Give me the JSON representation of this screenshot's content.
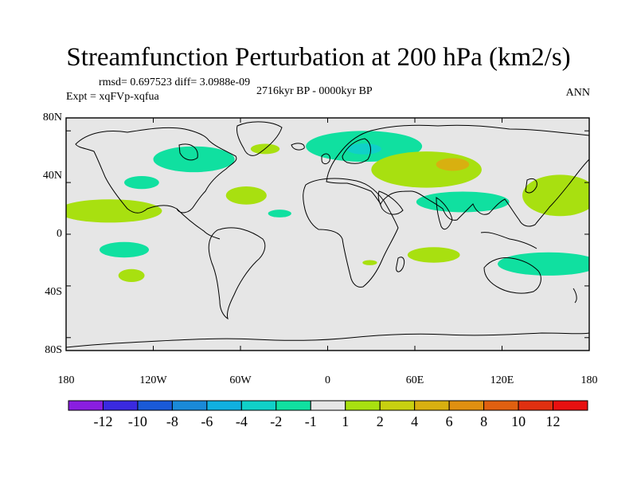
{
  "title": "Streamfunction Perturbation at 200 hPa (km2/s)",
  "stats": "rmsd= 0.697523 diff= 3.0988e-09",
  "period": "2716kyr BP - 0000kyr BP",
  "experiment": "Expt = xqFVp-xqfua",
  "season": "ANN",
  "axes": {
    "lat_ticks": [
      "80N",
      "40N",
      "0",
      "40S",
      "80S"
    ],
    "lon_ticks": [
      "180",
      "120W",
      "60W",
      "0",
      "60E",
      "120E",
      "180"
    ]
  },
  "colorbar": {
    "labels": [
      "-12",
      "-10",
      "-8",
      "-6",
      "-4",
      "-2",
      "-1",
      "1",
      "2",
      "4",
      "6",
      "8",
      "10",
      "12"
    ],
    "colors": [
      "#8a1ee0",
      "#3a2ae0",
      "#1a5ad8",
      "#1a8ad8",
      "#10b0e0",
      "#10d0c8",
      "#10e0a0",
      "#e6e6e6",
      "#a8e010",
      "#c8d010",
      "#d8b010",
      "#e09010",
      "#e06010",
      "#e03010",
      "#e81010"
    ]
  },
  "chart_data": {
    "type": "map",
    "projection": "cylindrical-equidistant",
    "variable": "Streamfunction Perturbation at 200 hPa",
    "units": "km2/s",
    "lon_range": [
      -180,
      180
    ],
    "lat_range": [
      -90,
      90
    ],
    "contour_levels": [
      -12,
      -10,
      -8,
      -6,
      -4,
      -2,
      -1,
      1,
      2,
      4,
      6,
      8,
      10,
      12
    ],
    "anomaly_regions": [
      {
        "name": "pos-mid-pacific-nh",
        "sign": "positive",
        "class": "1 to 2",
        "center": [
          -150,
          18
        ],
        "half_width_deg": [
          36,
          9
        ]
      },
      {
        "name": "neg-canada",
        "sign": "negative",
        "class": "-2 to -1",
        "center": [
          -92,
          58
        ],
        "half_width_deg": [
          28,
          10
        ]
      },
      {
        "name": "neg-north-pacific",
        "sign": "negative",
        "class": "-2 to -1",
        "center": [
          -128,
          40
        ],
        "half_width_deg": [
          12,
          5
        ]
      },
      {
        "name": "pos-greenland",
        "sign": "positive",
        "class": "1 to 2",
        "center": [
          -43,
          66
        ],
        "half_width_deg": [
          10,
          4
        ]
      },
      {
        "name": "pos-west-atlantic",
        "sign": "positive",
        "class": "1 to 2",
        "center": [
          -56,
          30
        ],
        "half_width_deg": [
          14,
          7
        ]
      },
      {
        "name": "neg-subtropical-atlantic",
        "sign": "negative",
        "class": "-2 to -1",
        "center": [
          -33,
          16
        ],
        "half_width_deg": [
          8,
          3
        ]
      },
      {
        "name": "neg-scandinavia",
        "sign": "negative",
        "class": "-4 to -2 core",
        "center": [
          25,
          68
        ],
        "half_width_deg": [
          40,
          12
        ]
      },
      {
        "name": "pos-central-asia",
        "sign": "positive",
        "class": "4 to 6 core",
        "center": [
          68,
          50
        ],
        "half_width_deg": [
          38,
          14
        ]
      },
      {
        "name": "neg-south-asia",
        "sign": "negative",
        "class": "-2 to -1",
        "center": [
          93,
          25
        ],
        "half_width_deg": [
          32,
          8
        ]
      },
      {
        "name": "pos-north-pacific-west",
        "sign": "positive",
        "class": "1 to 2",
        "center": [
          160,
          30
        ],
        "half_width_deg": [
          26,
          16
        ]
      },
      {
        "name": "neg-south-pacific",
        "sign": "negative",
        "class": "-2 to -1",
        "center": [
          -140,
          -12
        ],
        "half_width_deg": [
          17,
          6
        ]
      },
      {
        "name": "pos-south-pacific",
        "sign": "positive",
        "class": "1 to 2",
        "center": [
          -135,
          -32
        ],
        "half_width_deg": [
          9,
          5
        ]
      },
      {
        "name": "pos-south-indian",
        "sign": "positive",
        "class": "1 to 2",
        "center": [
          73,
          -16
        ],
        "half_width_deg": [
          18,
          6
        ]
      },
      {
        "name": "neg-australia-south",
        "sign": "negative",
        "class": "-2 to -1",
        "center": [
          152,
          -23
        ],
        "half_width_deg": [
          35,
          9
        ]
      },
      {
        "name": "pos-south-africa",
        "sign": "positive",
        "class": "1 to 2",
        "center": [
          29,
          -22
        ],
        "half_width_deg": [
          5,
          2
        ]
      }
    ]
  }
}
